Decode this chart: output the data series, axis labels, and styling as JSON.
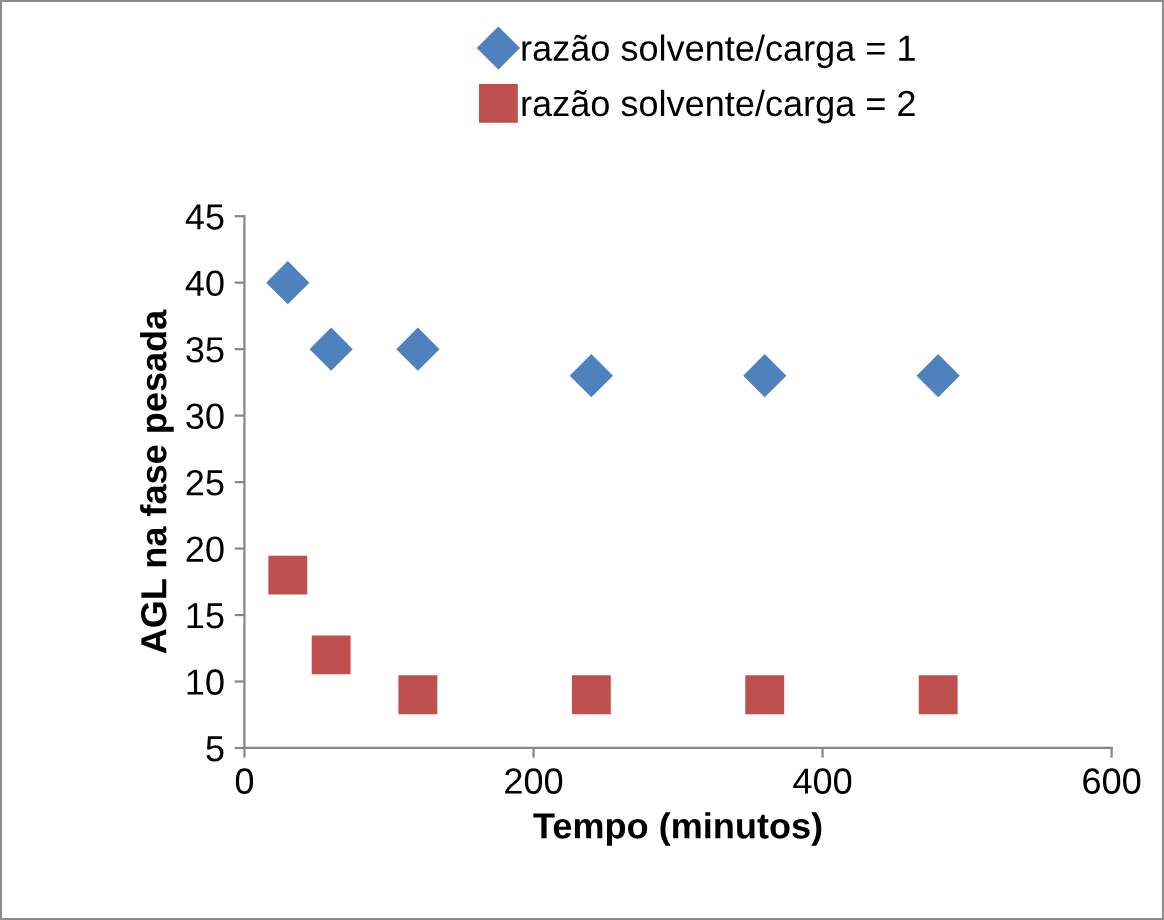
{
  "chart_data": {
    "type": "scatter",
    "xlabel": "Tempo (minutos)",
    "ylabel": "AGL na fase pesada",
    "x": [
      30,
      60,
      120,
      240,
      360,
      480
    ],
    "series": [
      {
        "name": "razão solvente/carga = 1",
        "color": "#4f81bd",
        "marker": "diamond",
        "values": [
          40,
          35,
          35,
          33,
          33,
          33
        ]
      },
      {
        "name": "razão solvente/carga = 2",
        "color": "#c0504d",
        "marker": "square",
        "values": [
          18,
          12,
          9,
          9,
          9,
          9
        ]
      }
    ],
    "xlim": [
      0,
      600
    ],
    "xticks": [
      0,
      200,
      400,
      600
    ],
    "ylim": [
      5,
      45
    ],
    "yticks": [
      5,
      10,
      15,
      20,
      25,
      30,
      35,
      40,
      45
    ],
    "grid": false,
    "legend": "top"
  }
}
